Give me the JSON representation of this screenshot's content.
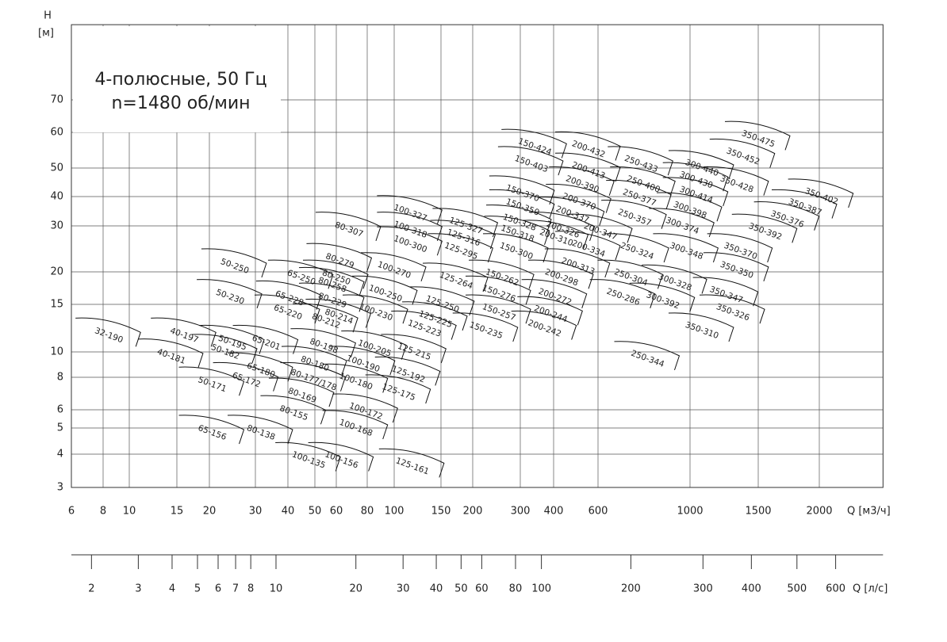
{
  "chart_data": {
    "type": "pump-selection",
    "title": [
      "4-полюсные, 50 Гц",
      "n=1480 об/мин"
    ],
    "y_label": "H",
    "y_unit": "[м]",
    "x_label": "Q [м3/ч]",
    "x2_label": "Q [л/с]",
    "xscale": "log",
    "yscale": "log",
    "grid": true,
    "xlim": [
      6,
      2700
    ],
    "ylim": [
      3,
      100
    ],
    "xticks": [
      6,
      8,
      10,
      15,
      20,
      30,
      40,
      50,
      60,
      80,
      100,
      150,
      200,
      300,
      400,
      600,
      1000,
      1500,
      2000
    ],
    "yticks": [
      3,
      4,
      5,
      6,
      8,
      10,
      15,
      20,
      30,
      40,
      50,
      60,
      70
    ],
    "x2ticks": [
      2,
      3,
      4,
      5,
      6,
      7,
      8,
      10,
      20,
      30,
      40,
      50,
      60,
      80,
      100,
      200,
      300,
      400,
      500,
      600
    ],
    "pumps": [
      {
        "name": "32-190",
        "q": 8.4,
        "h": 11.5
      },
      {
        "name": "40-197",
        "q": 16,
        "h": 11.5
      },
      {
        "name": "40-181",
        "q": 14.3,
        "h": 9.6
      },
      {
        "name": "50-250",
        "q": 25,
        "h": 21
      },
      {
        "name": "50-230",
        "q": 24,
        "h": 16
      },
      {
        "name": "50-195",
        "q": 24.5,
        "h": 10.8
      },
      {
        "name": "50-182",
        "q": 23,
        "h": 10
      },
      {
        "name": "50-171",
        "q": 20.5,
        "h": 7.5
      },
      {
        "name": "65-172",
        "q": 27.7,
        "h": 7.8
      },
      {
        "name": "65-180",
        "q": 31.5,
        "h": 8.5
      },
      {
        "name": "65-201",
        "q": 33,
        "h": 10.8
      },
      {
        "name": "65-156",
        "q": 20.5,
        "h": 4.8
      },
      {
        "name": "65-250",
        "q": 44.7,
        "h": 19
      },
      {
        "name": "65-228",
        "q": 40.5,
        "h": 15.8
      },
      {
        "name": "65-220",
        "q": 40,
        "h": 14
      },
      {
        "name": "80-307",
        "q": 67.5,
        "h": 29
      },
      {
        "name": "80-279",
        "q": 62,
        "h": 22
      },
      {
        "name": "80-250",
        "q": 60,
        "h": 19
      },
      {
        "name": "80-258",
        "q": 58,
        "h": 17.8
      },
      {
        "name": "80-229",
        "q": 58,
        "h": 15.5
      },
      {
        "name": "80-214",
        "q": 61.5,
        "h": 13.5
      },
      {
        "name": "80-212",
        "q": 55,
        "h": 13
      },
      {
        "name": "80-198",
        "q": 54,
        "h": 10.5
      },
      {
        "name": "80-180",
        "q": 50,
        "h": 9
      },
      {
        "name": "80-177/178",
        "q": 49.5,
        "h": 7.8
      },
      {
        "name": "80-169",
        "q": 45,
        "h": 6.8
      },
      {
        "name": "80-155",
        "q": 42,
        "h": 5.8
      },
      {
        "name": "80-138",
        "q": 31.5,
        "h": 4.8
      },
      {
        "name": "100-135",
        "q": 47.5,
        "h": 3.8
      },
      {
        "name": "100-156",
        "q": 63,
        "h": 3.8
      },
      {
        "name": "100-168",
        "q": 72,
        "h": 5
      },
      {
        "name": "100-172",
        "q": 79,
        "h": 5.9
      },
      {
        "name": "100-180",
        "q": 72,
        "h": 7.7
      },
      {
        "name": "100-190",
        "q": 77,
        "h": 9
      },
      {
        "name": "100-205",
        "q": 85,
        "h": 10.3
      },
      {
        "name": "100-230",
        "q": 86,
        "h": 14
      },
      {
        "name": "100-250",
        "q": 93,
        "h": 16.5
      },
      {
        "name": "100-270",
        "q": 100,
        "h": 20.3
      },
      {
        "name": "100-300",
        "q": 115,
        "h": 25.5
      },
      {
        "name": "100-318",
        "q": 115,
        "h": 29
      },
      {
        "name": "100-327",
        "q": 115,
        "h": 34
      },
      {
        "name": "125-327",
        "q": 188,
        "h": 30
      },
      {
        "name": "125-316",
        "q": 184,
        "h": 27
      },
      {
        "name": "125-295",
        "q": 180,
        "h": 24
      },
      {
        "name": "125-264",
        "q": 172,
        "h": 18.5
      },
      {
        "name": "125-250",
        "q": 152,
        "h": 15
      },
      {
        "name": "125-225",
        "q": 143,
        "h": 13.2
      },
      {
        "name": "125-223",
        "q": 130,
        "h": 12.2
      },
      {
        "name": "125-215",
        "q": 119,
        "h": 10
      },
      {
        "name": "125-192",
        "q": 113,
        "h": 8.2
      },
      {
        "name": "125-175",
        "q": 104,
        "h": 7
      },
      {
        "name": "125-161",
        "q": 117,
        "h": 3.6
      },
      {
        "name": "150-424",
        "q": 340,
        "h": 55.7
      },
      {
        "name": "150-403",
        "q": 330,
        "h": 51
      },
      {
        "name": "150-370",
        "q": 306,
        "h": 41
      },
      {
        "name": "150-350",
        "q": 306,
        "h": 36
      },
      {
        "name": "150-328",
        "q": 298,
        "h": 31
      },
      {
        "name": "150-318",
        "q": 293,
        "h": 28
      },
      {
        "name": "150-300",
        "q": 290,
        "h": 24
      },
      {
        "name": "150-262",
        "q": 257,
        "h": 19
      },
      {
        "name": "150-276",
        "q": 250,
        "h": 16.5
      },
      {
        "name": "150-257",
        "q": 250,
        "h": 14
      },
      {
        "name": "150-235",
        "q": 224,
        "h": 12
      },
      {
        "name": "200-432",
        "q": 550,
        "h": 55
      },
      {
        "name": "200-413",
        "q": 550,
        "h": 49
      },
      {
        "name": "200-390",
        "q": 520,
        "h": 44
      },
      {
        "name": "200-370",
        "q": 505,
        "h": 38
      },
      {
        "name": "200-337",
        "q": 475,
        "h": 33.5
      },
      {
        "name": "200-347",
        "q": 608,
        "h": 28.5
      },
      {
        "name": "200-326",
        "q": 435,
        "h": 29
      },
      {
        "name": "200-310",
        "q": 410,
        "h": 27
      },
      {
        "name": "200-334",
        "q": 550,
        "h": 24.5
      },
      {
        "name": "200-313",
        "q": 500,
        "h": 21
      },
      {
        "name": "200-298",
        "q": 430,
        "h": 19
      },
      {
        "name": "200-272",
        "q": 405,
        "h": 16
      },
      {
        "name": "200-244",
        "q": 390,
        "h": 13.8
      },
      {
        "name": "200-242",
        "q": 370,
        "h": 12.2
      },
      {
        "name": "250-433",
        "q": 762,
        "h": 51
      },
      {
        "name": "250-400",
        "q": 772,
        "h": 44
      },
      {
        "name": "250-377",
        "q": 755,
        "h": 39.5
      },
      {
        "name": "250-357",
        "q": 735,
        "h": 32.5
      },
      {
        "name": "250-324",
        "q": 745,
        "h": 24
      },
      {
        "name": "250-304",
        "q": 720,
        "h": 19
      },
      {
        "name": "250-286",
        "q": 690,
        "h": 16
      },
      {
        "name": "250-344",
        "q": 790,
        "h": 9.4
      },
      {
        "name": "300-440",
        "q": 1073,
        "h": 50
      },
      {
        "name": "300-430",
        "q": 1037,
        "h": 45.5
      },
      {
        "name": "300-414",
        "q": 1037,
        "h": 40.5
      },
      {
        "name": "300-398",
        "q": 1000,
        "h": 35
      },
      {
        "name": "300-374",
        "q": 958,
        "h": 30
      },
      {
        "name": "300-348",
        "q": 980,
        "h": 24
      },
      {
        "name": "300-328",
        "q": 920,
        "h": 18.2
      },
      {
        "name": "300-392",
        "q": 860,
        "h": 15.5
      },
      {
        "name": "350-475",
        "q": 1500,
        "h": 58
      },
      {
        "name": "350-452",
        "q": 1370,
        "h": 53
      },
      {
        "name": "350-428",
        "q": 1320,
        "h": 44
      },
      {
        "name": "350-402",
        "q": 2020,
        "h": 40
      },
      {
        "name": "350-387",
        "q": 1870,
        "h": 36
      },
      {
        "name": "350-376",
        "q": 1720,
        "h": 32
      },
      {
        "name": "350-392",
        "q": 1550,
        "h": 28.5
      },
      {
        "name": "350-370",
        "q": 1350,
        "h": 24
      },
      {
        "name": "350-350",
        "q": 1320,
        "h": 20.3
      },
      {
        "name": "350-347",
        "q": 1240,
        "h": 16.3
      },
      {
        "name": "350-326",
        "q": 1290,
        "h": 14
      },
      {
        "name": "350-310",
        "q": 1073,
        "h": 12
      }
    ]
  }
}
